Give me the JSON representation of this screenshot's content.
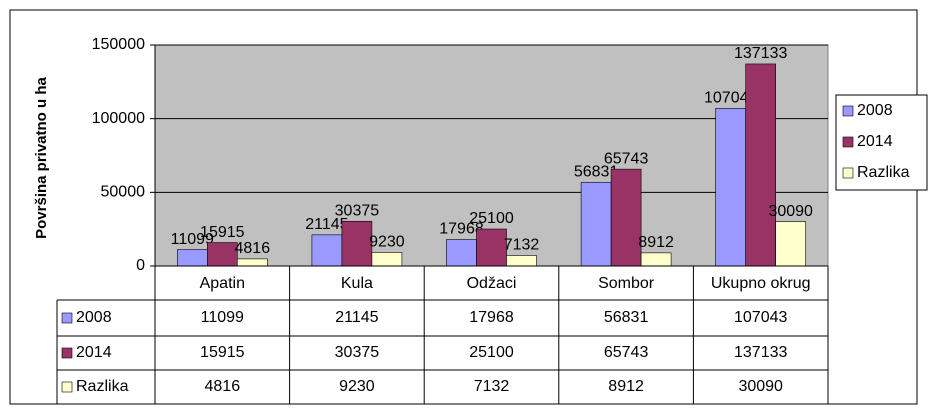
{
  "chart_data": {
    "type": "bar",
    "y_label": "Površina privatno u ha",
    "categories": [
      "Apatin",
      "Kula",
      "Odžaci",
      "Sombor",
      "Ukupno okrug"
    ],
    "series": [
      {
        "name": "2008",
        "color": "#9999ff",
        "values": [
          11099,
          21145,
          17968,
          56831,
          107043
        ]
      },
      {
        "name": "2014",
        "color": "#993366",
        "values": [
          15915,
          30375,
          25100,
          65743,
          137133
        ]
      },
      {
        "name": "Razlika",
        "color": "#ffffcc",
        "values": [
          4816,
          9230,
          7132,
          8912,
          30090
        ]
      }
    ],
    "ylim": [
      0,
      150000
    ],
    "yticks": [
      0,
      50000,
      100000,
      150000
    ],
    "grid": true,
    "legend": "right",
    "plot_background": "#c0c0c0"
  }
}
